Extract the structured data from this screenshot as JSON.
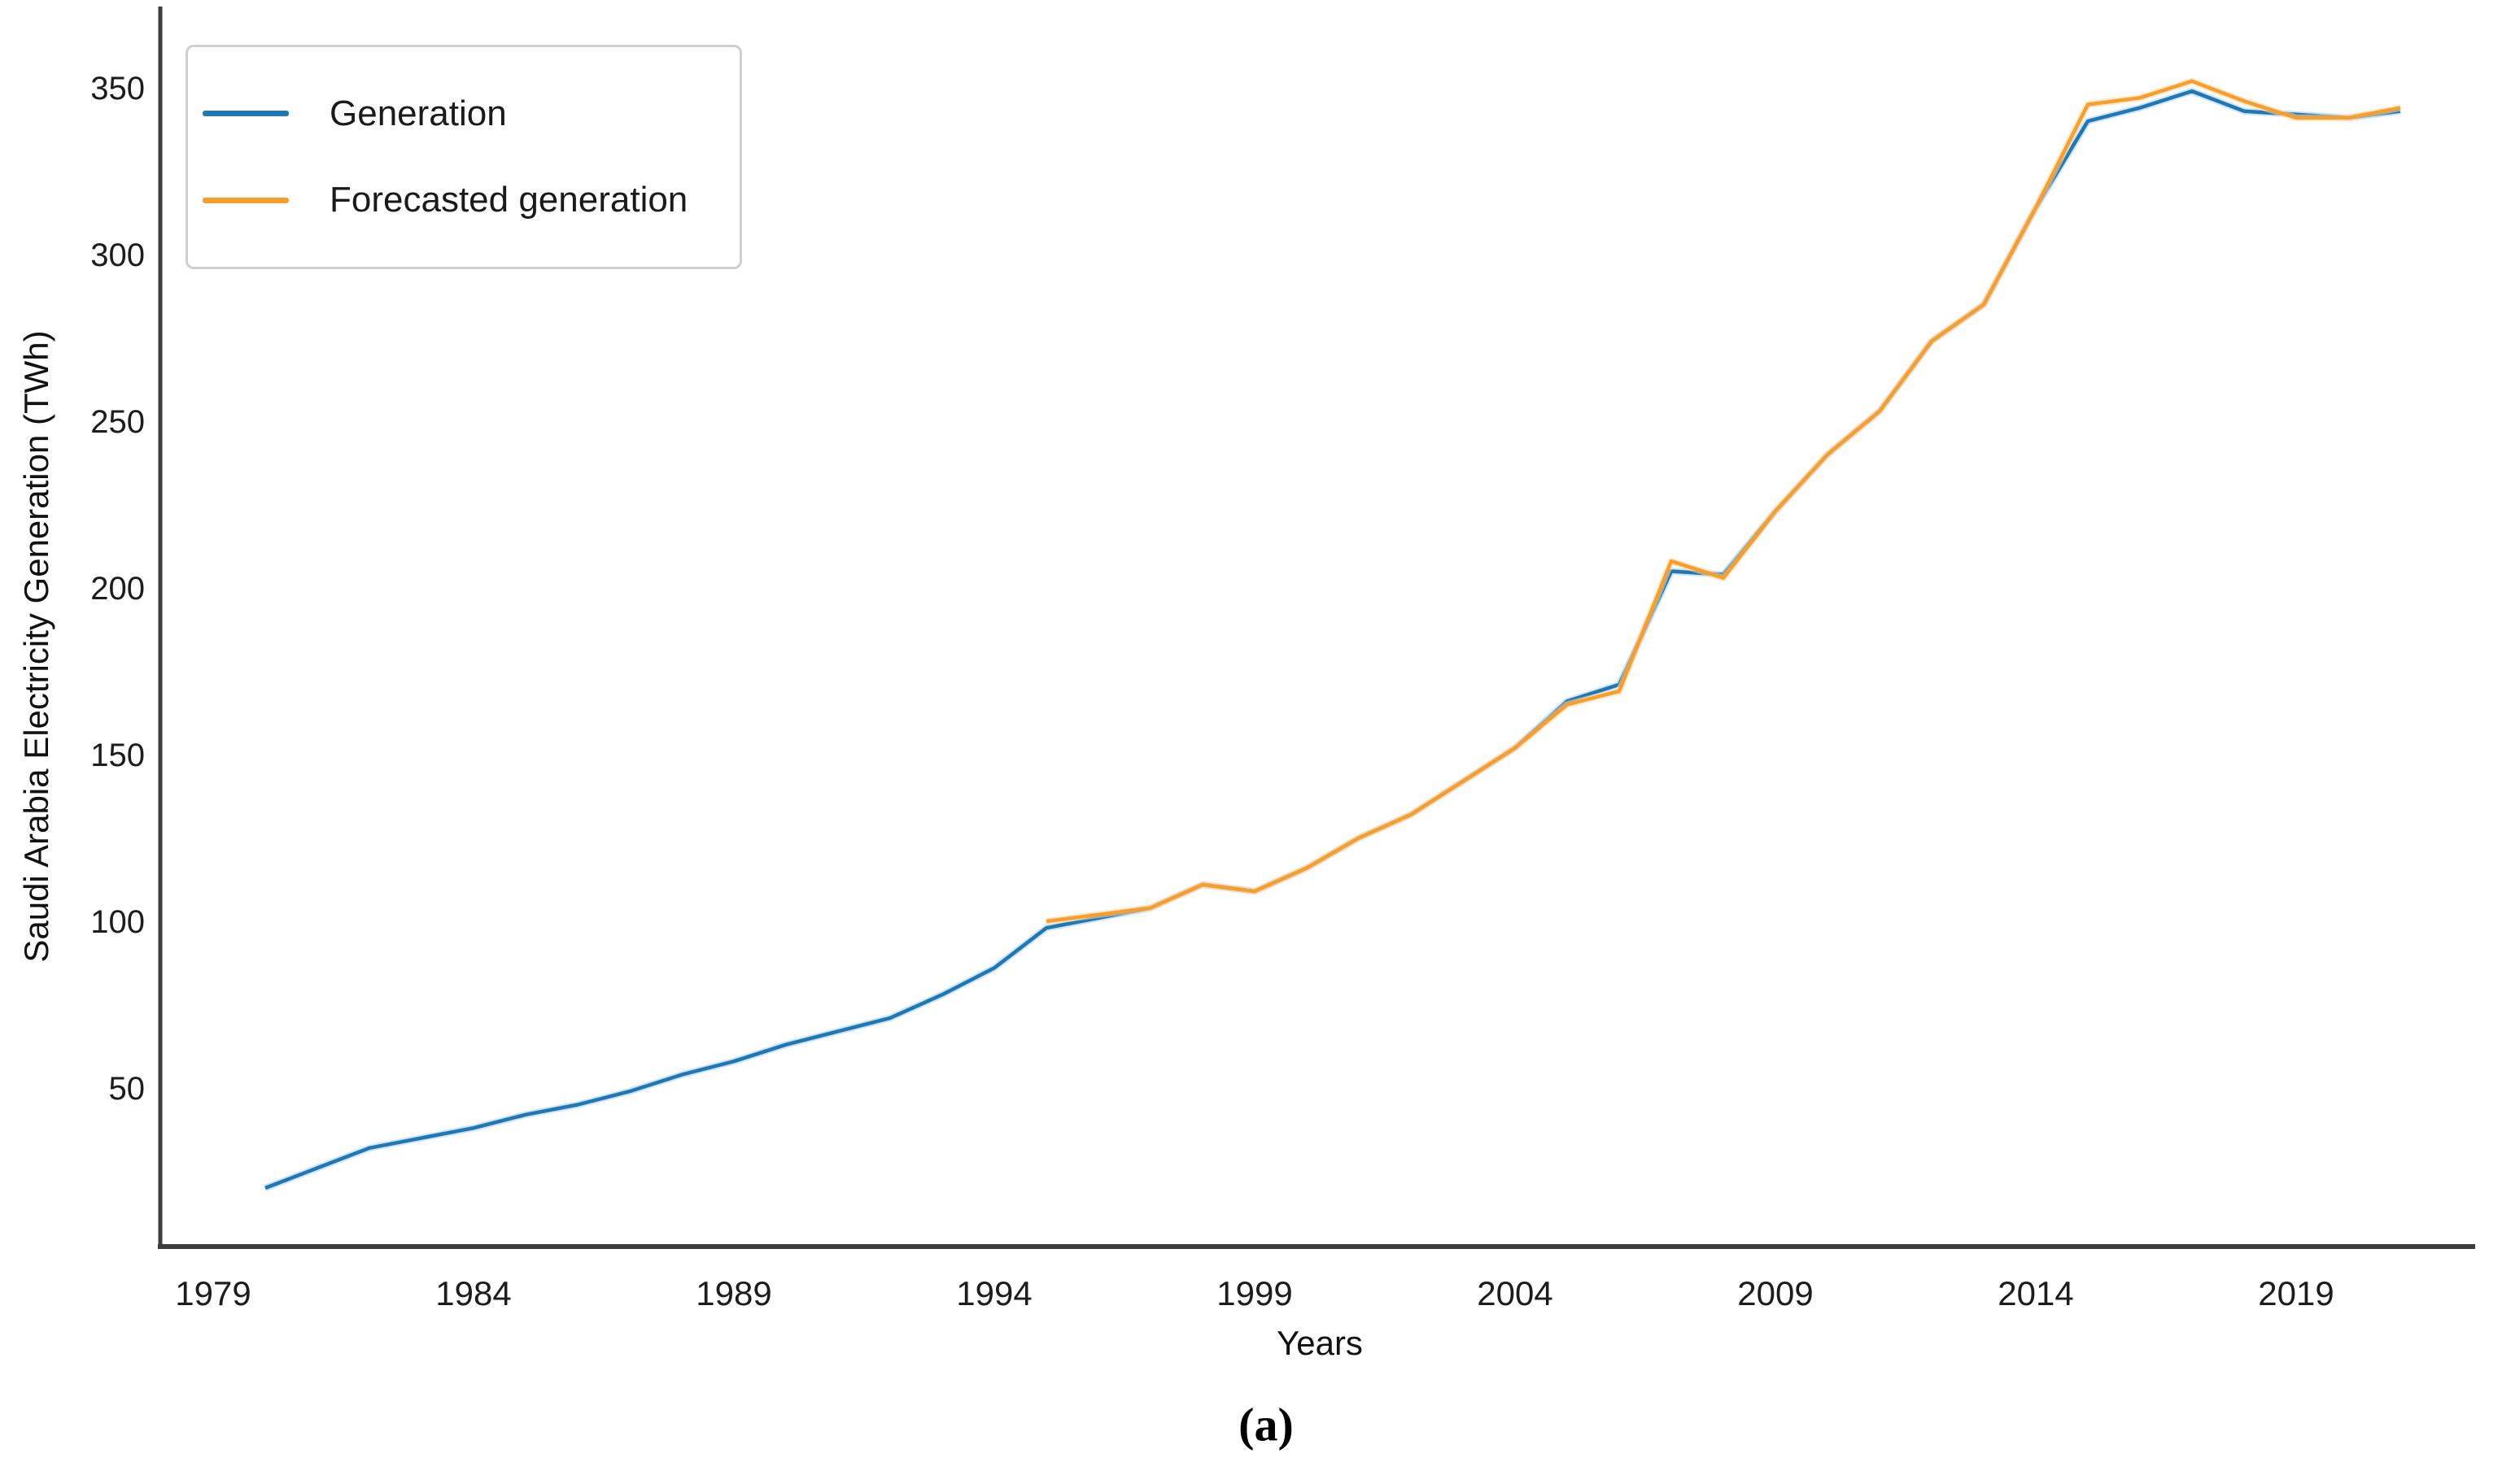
{
  "figure": {
    "caption": "(a)",
    "background": "#ffffff"
  },
  "chart_data": {
    "type": "line",
    "title": "",
    "xlabel": "Years",
    "ylabel": "Saudi Arabia Electricity Generation (TWh)",
    "grid": false,
    "x_axis": {
      "ticks": [
        1979,
        1984,
        1989,
        1994,
        1999,
        2004,
        2009,
        2014,
        2019
      ],
      "range": [
        1978,
        2022.4
      ]
    },
    "y_axis": {
      "ticks": [
        50,
        100,
        150,
        200,
        250,
        300,
        350
      ],
      "range": [
        0,
        374
      ]
    },
    "legend": {
      "position": "upper-left",
      "border_color": "#cfcfcf"
    },
    "series": [
      {
        "name": "Generation",
        "color": "#1f77b4",
        "halo_color": "#a8cdf0",
        "x": [
          1980,
          1981,
          1982,
          1983,
          1984,
          1985,
          1986,
          1987,
          1988,
          1989,
          1990,
          1991,
          1992,
          1993,
          1994,
          1995,
          1996,
          1997,
          1998,
          1999,
          2000,
          2001,
          2002,
          2003,
          2004,
          2005,
          2006,
          2007,
          2008,
          2009,
          2010,
          2011,
          2012,
          2013,
          2014,
          2015,
          2016,
          2017,
          2018,
          2019,
          2020,
          2021
        ],
        "values": [
          20,
          26,
          32,
          35,
          38,
          42,
          45,
          49,
          54,
          58,
          63,
          67,
          71,
          78,
          86,
          98,
          101,
          104,
          111,
          109,
          116,
          125,
          132,
          142,
          152,
          166,
          171,
          205,
          204,
          223,
          240,
          253,
          274,
          285,
          314,
          340,
          344,
          349,
          343,
          342,
          341,
          343
        ]
      },
      {
        "name": "Forecasted generation",
        "color": "#f99e2c",
        "halo_color": "#ffd9a0",
        "x": [
          1995,
          1996,
          1997,
          1998,
          1999,
          2000,
          2001,
          2002,
          2003,
          2004,
          2005,
          2006,
          2007,
          2008,
          2009,
          2010,
          2011,
          2012,
          2013,
          2014,
          2015,
          2016,
          2017,
          2018,
          2019,
          2020,
          2021
        ],
        "values": [
          100,
          102,
          104,
          111,
          109,
          116,
          125,
          132,
          142,
          152,
          165,
          169,
          208,
          203,
          223,
          240,
          253,
          274,
          285,
          314,
          345,
          347,
          352,
          346,
          341,
          341,
          344
        ]
      }
    ]
  }
}
